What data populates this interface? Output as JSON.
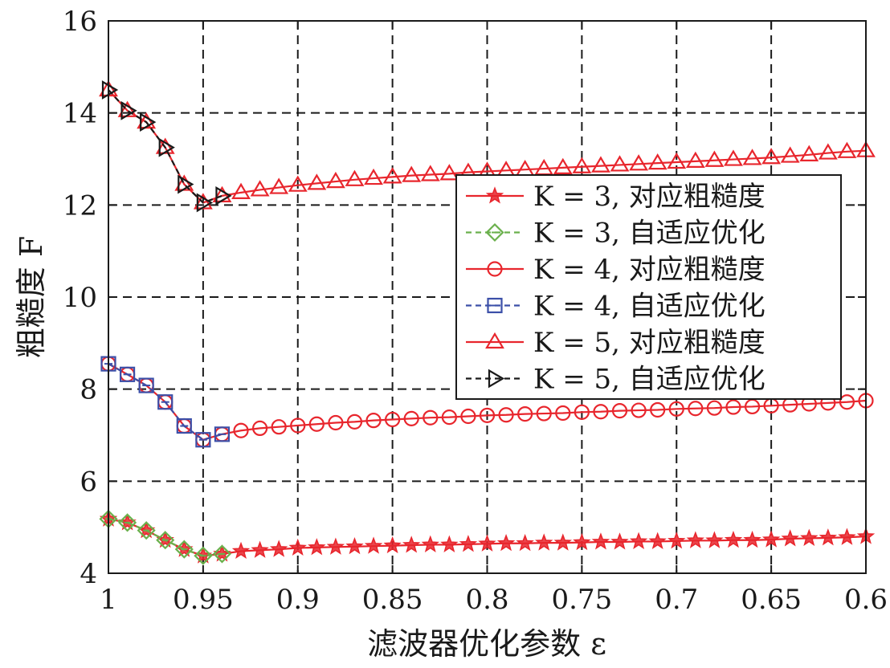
{
  "chart_data": {
    "type": "line",
    "xlabel": "滤波器优化参数 ε",
    "ylabel": "粗糙度 F",
    "xlim": [
      1,
      0.6
    ],
    "ylim": [
      4,
      16
    ],
    "x_reversed": true,
    "grid": true,
    "legend_position": "center-right",
    "xticks": [
      1,
      0.95,
      0.9,
      0.85,
      0.8,
      0.75,
      0.7,
      0.65,
      0.6
    ],
    "xtick_labels": [
      "1",
      "0.95",
      "0.9",
      "0.85",
      "0.8",
      "0.75",
      "0.7",
      "0.65",
      "0.6"
    ],
    "yticks": [
      4,
      6,
      8,
      10,
      12,
      14,
      16
    ],
    "ytick_labels": [
      "4",
      "6",
      "8",
      "10",
      "12",
      "14",
      "16"
    ],
    "series": [
      {
        "name": "K = 3, 对应粗糙度",
        "color": "#e8262d",
        "line": "solid",
        "marker": "star",
        "x": [
          1,
          0.99,
          0.98,
          0.97,
          0.96,
          0.95,
          0.94,
          0.93,
          0.92,
          0.91,
          0.9,
          0.89,
          0.88,
          0.87,
          0.86,
          0.85,
          0.84,
          0.83,
          0.82,
          0.81,
          0.8,
          0.79,
          0.78,
          0.77,
          0.76,
          0.75,
          0.74,
          0.73,
          0.72,
          0.71,
          0.7,
          0.69,
          0.68,
          0.67,
          0.66,
          0.65,
          0.64,
          0.63,
          0.62,
          0.61,
          0.6
        ],
        "y": [
          5.18,
          5.1,
          4.93,
          4.72,
          4.52,
          4.38,
          4.42,
          4.48,
          4.5,
          4.52,
          4.55,
          4.56,
          4.57,
          4.58,
          4.59,
          4.6,
          4.61,
          4.62,
          4.62,
          4.63,
          4.64,
          4.65,
          4.65,
          4.66,
          4.66,
          4.67,
          4.68,
          4.68,
          4.69,
          4.69,
          4.7,
          4.71,
          4.71,
          4.72,
          4.72,
          4.73,
          4.75,
          4.76,
          4.77,
          4.78,
          4.8
        ]
      },
      {
        "name": "K = 3, 自适应优化",
        "color": "#6ab04c",
        "line": "dashed",
        "marker": "diamond",
        "x": [
          1,
          0.99,
          0.98,
          0.97,
          0.96,
          0.95,
          0.94
        ],
        "y": [
          5.18,
          5.1,
          4.93,
          4.72,
          4.52,
          4.38,
          4.42
        ]
      },
      {
        "name": "K = 4, 对应粗糙度",
        "color": "#e8262d",
        "line": "solid",
        "marker": "circle",
        "x": [
          1,
          0.99,
          0.98,
          0.97,
          0.96,
          0.95,
          0.94,
          0.93,
          0.92,
          0.91,
          0.9,
          0.89,
          0.88,
          0.87,
          0.86,
          0.85,
          0.84,
          0.83,
          0.82,
          0.81,
          0.8,
          0.79,
          0.78,
          0.77,
          0.76,
          0.75,
          0.74,
          0.73,
          0.72,
          0.71,
          0.7,
          0.69,
          0.68,
          0.67,
          0.66,
          0.65,
          0.64,
          0.63,
          0.62,
          0.61,
          0.6
        ],
        "y": [
          8.55,
          8.32,
          8.08,
          7.72,
          7.2,
          6.9,
          7.02,
          7.1,
          7.15,
          7.18,
          7.21,
          7.24,
          7.27,
          7.29,
          7.32,
          7.34,
          7.36,
          7.38,
          7.39,
          7.41,
          7.43,
          7.44,
          7.46,
          7.47,
          7.48,
          7.5,
          7.51,
          7.53,
          7.54,
          7.55,
          7.57,
          7.58,
          7.59,
          7.61,
          7.62,
          7.64,
          7.66,
          7.68,
          7.7,
          7.72,
          7.75
        ]
      },
      {
        "name": "K = 4, 自适应优化",
        "color": "#3b4fa8",
        "line": "dashed",
        "marker": "square",
        "x": [
          1,
          0.99,
          0.98,
          0.97,
          0.96,
          0.95,
          0.94
        ],
        "y": [
          8.55,
          8.32,
          8.08,
          7.72,
          7.2,
          6.9,
          7.02
        ]
      },
      {
        "name": "K = 5, 对应粗糙度",
        "color": "#e8262d",
        "line": "solid",
        "marker": "triangle-up",
        "x": [
          1,
          0.99,
          0.98,
          0.97,
          0.96,
          0.95,
          0.94,
          0.93,
          0.92,
          0.91,
          0.9,
          0.89,
          0.88,
          0.87,
          0.86,
          0.85,
          0.84,
          0.83,
          0.82,
          0.81,
          0.8,
          0.79,
          0.78,
          0.77,
          0.76,
          0.75,
          0.74,
          0.73,
          0.72,
          0.71,
          0.7,
          0.69,
          0.68,
          0.67,
          0.66,
          0.65,
          0.64,
          0.63,
          0.62,
          0.61,
          0.6
        ],
        "y": [
          14.5,
          14.05,
          13.8,
          13.25,
          12.45,
          12.05,
          12.2,
          12.27,
          12.33,
          12.38,
          12.43,
          12.47,
          12.51,
          12.55,
          12.58,
          12.61,
          12.64,
          12.66,
          12.68,
          12.71,
          12.73,
          12.75,
          12.77,
          12.79,
          12.81,
          12.83,
          12.85,
          12.87,
          12.89,
          12.91,
          12.93,
          12.95,
          12.97,
          12.99,
          13.01,
          13.03,
          13.06,
          13.09,
          13.13,
          13.16,
          13.18
        ]
      },
      {
        "name": "K = 5, 自适应优化",
        "color": "#1a1a1a",
        "line": "dashed",
        "marker": "triangle-right",
        "x": [
          1,
          0.99,
          0.98,
          0.97,
          0.96,
          0.95,
          0.94
        ],
        "y": [
          14.5,
          14.05,
          13.8,
          13.25,
          12.45,
          12.05,
          12.2
        ]
      }
    ]
  }
}
